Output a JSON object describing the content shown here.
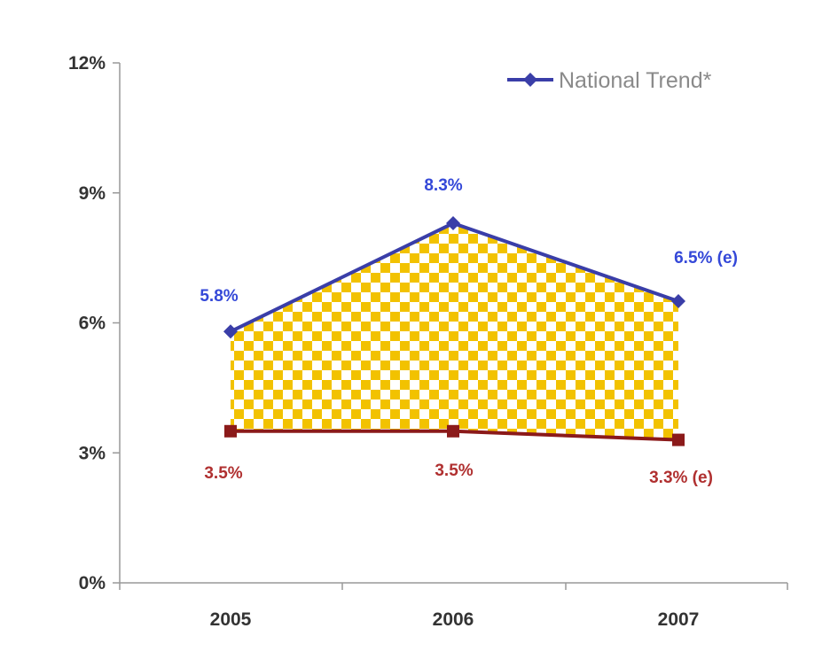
{
  "chart_data": {
    "type": "line",
    "categories": [
      "2005",
      "2006",
      "2007"
    ],
    "ylim": [
      0,
      12
    ],
    "yticks": [
      0,
      3,
      6,
      9,
      12
    ],
    "ytick_labels": [
      "0%",
      "3%",
      "6%",
      "9%",
      "12%"
    ],
    "series": [
      {
        "name": "National Trend*",
        "values": [
          5.8,
          8.3,
          6.5
        ],
        "labels": [
          "5.8%",
          "8.3%",
          "6.5% (e)"
        ],
        "color": "#3a3ea8",
        "label_color": "#3448d8",
        "marker": "diamond"
      },
      {
        "name": "",
        "values": [
          3.5,
          3.5,
          3.3
        ],
        "labels": [
          "3.5%",
          "3.5%",
          "3.3% (e)"
        ],
        "color": "#8b1a1a",
        "label_color": "#b03030",
        "marker": "square"
      }
    ],
    "fill_between": {
      "color": "#f2c200",
      "pattern": "checkered"
    },
    "legend_position": "top-right",
    "grid": false
  }
}
